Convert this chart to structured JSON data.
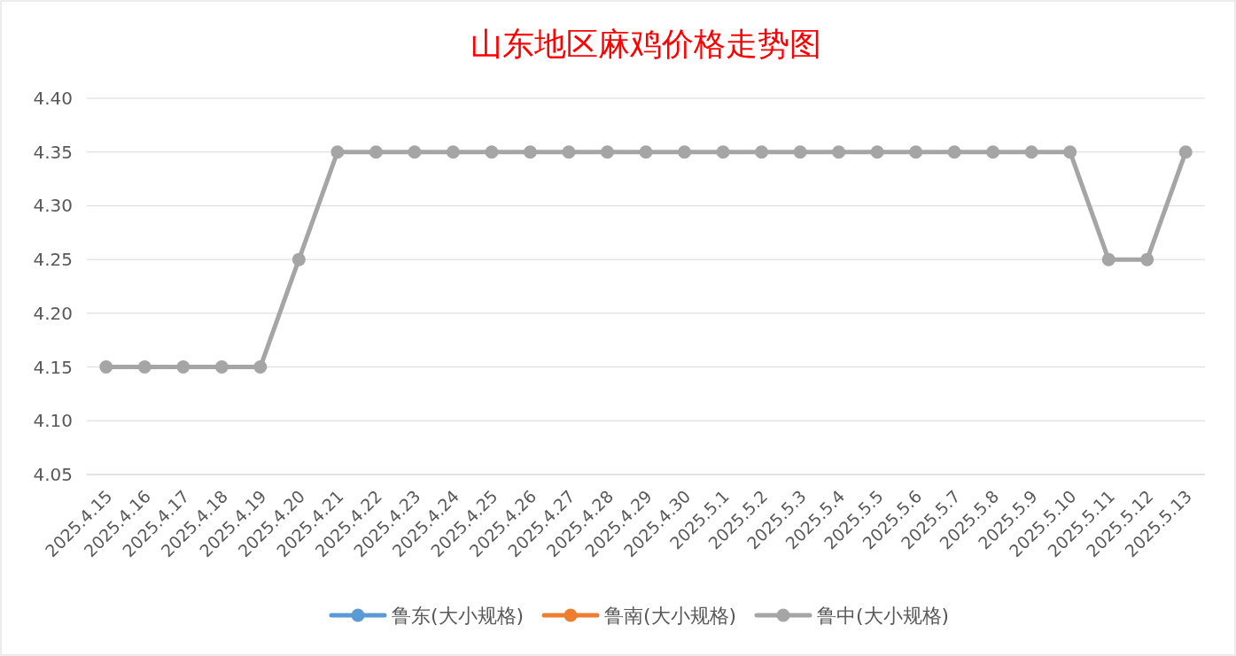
{
  "chart_data": {
    "type": "line",
    "title": "山东地区麻鸡价格走势图",
    "categories": [
      "2025.4.15",
      "2025.4.16",
      "2025.4.17",
      "2025.4.18",
      "2025.4.19",
      "2025.4.20",
      "2025.4.21",
      "2025.4.22",
      "2025.4.23",
      "2025.4.24",
      "2025.4.25",
      "2025.4.26",
      "2025.4.27",
      "2025.4.28",
      "2025.4.29",
      "2025.4.30",
      "2025.5.1",
      "2025.5.2",
      "2025.5.3",
      "2025.5.4",
      "2025.5.5",
      "2025.5.6",
      "2025.5.7",
      "2025.5.8",
      "2025.5.9",
      "2025.5.10",
      "2025.5.11",
      "2025.5.12",
      "2025.5.13"
    ],
    "series": [
      {
        "name": "鲁东(大小规格)",
        "color": "#5b9bd5",
        "values": [
          null,
          null,
          null,
          null,
          null,
          null,
          null,
          null,
          null,
          null,
          null,
          null,
          null,
          null,
          null,
          null,
          null,
          null,
          null,
          null,
          null,
          null,
          null,
          null,
          null,
          null,
          null,
          null,
          null
        ]
      },
      {
        "name": "鲁南(大小规格)",
        "color": "#ed7d31",
        "values": [
          null,
          null,
          null,
          null,
          null,
          null,
          null,
          null,
          null,
          null,
          null,
          null,
          null,
          null,
          null,
          null,
          null,
          null,
          null,
          null,
          null,
          null,
          null,
          null,
          null,
          null,
          null,
          null,
          null
        ]
      },
      {
        "name": "鲁中(大小规格)",
        "color": "#a5a5a5",
        "values": [
          4.15,
          4.15,
          4.15,
          4.15,
          4.15,
          4.25,
          4.35,
          4.35,
          4.35,
          4.35,
          4.35,
          4.35,
          4.35,
          4.35,
          4.35,
          4.35,
          4.35,
          4.35,
          4.35,
          4.35,
          4.35,
          4.35,
          4.35,
          4.35,
          4.35,
          4.35,
          4.25,
          4.25,
          4.35
        ]
      }
    ],
    "ylim": [
      4.05,
      4.4
    ],
    "yticks": [
      4.05,
      {
        "value": 4.1,
        "label": "4.10"
      },
      4.15,
      {
        "value": 4.2,
        "label": "4.20"
      },
      4.25,
      {
        "value": 4.3,
        "label": "4.30"
      },
      4.35,
      {
        "value": 4.4,
        "label": "4.40"
      }
    ],
    "grid": "y",
    "legend": "bottom",
    "marker": "circle",
    "line_style": "solid"
  }
}
